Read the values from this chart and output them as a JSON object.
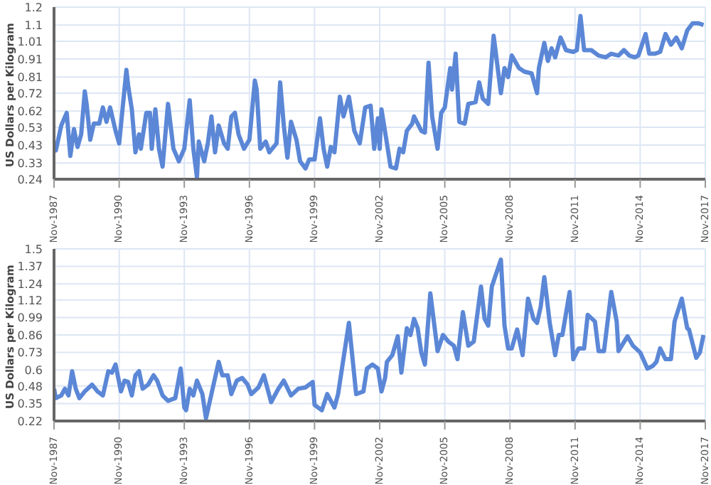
{
  "chart_data": [
    {
      "type": "line",
      "ylabel": "US Dollars per Kilogram",
      "grid": true,
      "x": [
        "1987-11",
        "1987-12",
        "1988-03",
        "1988-06",
        "1988-07",
        "1988-08",
        "1988-10",
        "1988-12",
        "1989-02",
        "1989-04",
        "1989-05",
        "1989-07",
        "1989-09",
        "1989-12",
        "1990-02",
        "1990-04",
        "1990-06",
        "1990-09",
        "1990-11",
        "1991-03",
        "1991-04",
        "1991-06",
        "1991-08",
        "1991-10",
        "1991-11",
        "1992-02",
        "1992-04",
        "1992-05",
        "1992-07",
        "1992-09",
        "1992-11",
        "1993-02",
        "1993-05",
        "1993-08",
        "1993-11",
        "1994-02",
        "1994-04",
        "1994-06",
        "1994-07",
        "1994-10",
        "1994-12",
        "1995-02",
        "1995-04",
        "1995-06",
        "1995-09",
        "1995-11",
        "1996-01",
        "1996-03",
        "1996-05",
        "1996-08",
        "1996-11",
        "1997-02",
        "1997-03",
        "1997-05",
        "1997-08",
        "1997-10",
        "1998-02",
        "1998-04",
        "1998-06",
        "1998-08",
        "1998-10",
        "1999-01",
        "1999-03",
        "1999-06",
        "1999-08",
        "1999-11",
        "2000-02",
        "2000-04",
        "2000-06",
        "2000-08",
        "2000-10",
        "2001-01",
        "2001-03",
        "2001-06",
        "2001-09",
        "2001-12",
        "2002-03",
        "2002-06",
        "2002-08",
        "2002-10",
        "2002-11",
        "2002-12",
        "2003-03",
        "2003-05",
        "2003-08",
        "2003-10",
        "2003-12",
        "2004-02",
        "2004-05",
        "2004-06",
        "2004-10",
        "2004-12",
        "2005-02",
        "2005-04",
        "2005-07",
        "2005-09",
        "2005-11",
        "2006-02",
        "2006-03",
        "2006-05",
        "2006-07",
        "2006-10",
        "2006-12",
        "2007-04",
        "2007-06",
        "2007-08",
        "2007-11",
        "2008-02",
        "2008-06",
        "2008-08",
        "2008-10",
        "2008-12",
        "2009-04",
        "2009-07",
        "2009-11",
        "2010-02",
        "2010-03",
        "2010-06",
        "2010-08",
        "2010-10",
        "2010-12",
        "2011-03",
        "2011-06",
        "2011-10",
        "2011-12",
        "2012-02",
        "2012-04",
        "2012-08",
        "2012-12",
        "2013-04",
        "2013-07",
        "2013-11",
        "2014-02",
        "2014-05",
        "2014-08",
        "2014-10",
        "2015-02",
        "2015-04",
        "2015-07",
        "2015-10",
        "2016-01",
        "2016-04",
        "2016-07",
        "2016-10",
        "2017-01",
        "2017-04",
        "2017-07",
        "2017-10"
      ],
      "series": [
        {
          "color": "#5b87d6",
          "values": [
            0.42,
            0.4,
            0.54,
            0.61,
            0.49,
            0.37,
            0.52,
            0.42,
            0.49,
            0.73,
            0.66,
            0.46,
            0.55,
            0.55,
            0.64,
            0.56,
            0.64,
            0.51,
            0.44,
            0.85,
            0.76,
            0.63,
            0.39,
            0.49,
            0.41,
            0.61,
            0.61,
            0.41,
            0.63,
            0.41,
            0.31,
            0.66,
            0.41,
            0.34,
            0.41,
            0.68,
            0.41,
            0.25,
            0.45,
            0.34,
            0.44,
            0.59,
            0.39,
            0.54,
            0.44,
            0.41,
            0.59,
            0.61,
            0.49,
            0.41,
            0.46,
            0.79,
            0.74,
            0.41,
            0.45,
            0.39,
            0.44,
            0.78,
            0.54,
            0.36,
            0.56,
            0.46,
            0.34,
            0.3,
            0.35,
            0.35,
            0.58,
            0.41,
            0.31,
            0.42,
            0.39,
            0.7,
            0.59,
            0.7,
            0.51,
            0.44,
            0.64,
            0.65,
            0.41,
            0.58,
            0.41,
            0.63,
            0.44,
            0.31,
            0.3,
            0.41,
            0.39,
            0.51,
            0.55,
            0.59,
            0.51,
            0.5,
            0.89,
            0.59,
            0.41,
            0.61,
            0.64,
            0.86,
            0.74,
            0.94,
            0.56,
            0.55,
            0.66,
            0.67,
            0.78,
            0.69,
            0.66,
            1.04,
            0.72,
            0.86,
            0.81,
            0.93,
            0.86,
            0.84,
            0.83,
            0.72,
            0.86,
            1.0,
            0.9,
            0.97,
            0.92,
            1.03,
            0.96,
            0.95,
            0.96,
            1.15,
            0.96,
            0.96,
            0.93,
            0.92,
            0.94,
            0.93,
            0.96,
            0.93,
            0.92,
            0.93,
            1.05,
            0.94,
            0.94,
            0.95,
            1.05,
            0.99,
            1.03,
            0.97,
            1.07,
            1.11,
            1.11,
            1.1
          ]
        }
      ],
      "xlim": [
        "1987-11",
        "2017-11"
      ],
      "xticks": [
        {
          "value": "1987-11",
          "label": "Nov-1987"
        },
        {
          "value": "1990-11",
          "label": "Nov-1990"
        },
        {
          "value": "1993-11",
          "label": "Nov-1993"
        },
        {
          "value": "1996-11",
          "label": "Nov-1996"
        },
        {
          "value": "1999-11",
          "label": "Nov-1999"
        },
        {
          "value": "2002-11",
          "label": "Nov-2002"
        },
        {
          "value": "2005-11",
          "label": "Nov-2005"
        },
        {
          "value": "2008-11",
          "label": "Nov-2008"
        },
        {
          "value": "2011-11",
          "label": "Nov-2011"
        },
        {
          "value": "2014-11",
          "label": "Nov-2014"
        },
        {
          "value": "2017-11",
          "label": "Nov-2017"
        }
      ],
      "ylim": [
        0.24,
        1.2
      ],
      "yticks": [
        0.24,
        0.33,
        0.43,
        0.53,
        0.62,
        0.72,
        0.81,
        0.91,
        1.01,
        1.1,
        1.2
      ]
    },
    {
      "type": "line",
      "ylabel": "US Dollars per Kilogram",
      "grid": true,
      "x": [
        "1987-11",
        "1987-12",
        "1988-03",
        "1988-05",
        "1988-07",
        "1988-09",
        "1988-11",
        "1989-01",
        "1989-04",
        "1989-08",
        "1989-11",
        "1990-02",
        "1990-05",
        "1990-07",
        "1990-09",
        "1990-12",
        "1991-02",
        "1991-04",
        "1991-06",
        "1991-08",
        "1991-10",
        "1991-12",
        "1992-03",
        "1992-06",
        "1992-08",
        "1992-11",
        "1993-02",
        "1993-06",
        "1993-09",
        "1993-11",
        "1993-12",
        "1994-02",
        "1994-04",
        "1994-06",
        "1994-09",
        "1994-11",
        "1995-02",
        "1995-06",
        "1995-08",
        "1995-11",
        "1996-01",
        "1996-04",
        "1996-07",
        "1996-10",
        "1996-12",
        "1997-04",
        "1997-07",
        "1997-11",
        "1998-03",
        "1998-06",
        "1998-10",
        "1999-02",
        "1999-06",
        "1999-10",
        "1999-11",
        "2000-03",
        "2000-06",
        "2000-10",
        "2000-12",
        "2001-06",
        "2001-10",
        "2002-02",
        "2002-04",
        "2002-07",
        "2002-10",
        "2002-12",
        "2003-02",
        "2003-03",
        "2003-06",
        "2003-09",
        "2003-11",
        "2004-02",
        "2004-04",
        "2004-06",
        "2004-08",
        "2004-10",
        "2004-12",
        "2005-03",
        "2005-07",
        "2005-10",
        "2006-01",
        "2006-04",
        "2006-06",
        "2006-09",
        "2006-12",
        "2007-03",
        "2007-07",
        "2007-09",
        "2007-11",
        "2008-01",
        "2008-06",
        "2008-08",
        "2008-10",
        "2008-12",
        "2009-03",
        "2009-06",
        "2009-09",
        "2009-12",
        "2010-02",
        "2010-04",
        "2010-06",
        "2010-09",
        "2010-12",
        "2011-02",
        "2011-04",
        "2011-08",
        "2011-10",
        "2012-01",
        "2012-04",
        "2012-06",
        "2012-10",
        "2012-12",
        "2013-03",
        "2013-07",
        "2013-10",
        "2013-11",
        "2014-04",
        "2014-07",
        "2014-11",
        "2015-03",
        "2015-06",
        "2015-08",
        "2015-10",
        "2016-01",
        "2016-04",
        "2016-06",
        "2016-10",
        "2017-01",
        "2017-02",
        "2017-06",
        "2017-08",
        "2017-10"
      ],
      "series": [
        {
          "color": "#5b87d6",
          "values": [
            0.46,
            0.39,
            0.41,
            0.46,
            0.41,
            0.59,
            0.46,
            0.39,
            0.44,
            0.49,
            0.44,
            0.41,
            0.59,
            0.58,
            0.64,
            0.44,
            0.52,
            0.51,
            0.41,
            0.56,
            0.59,
            0.46,
            0.49,
            0.56,
            0.52,
            0.41,
            0.37,
            0.39,
            0.61,
            0.32,
            0.3,
            0.46,
            0.41,
            0.52,
            0.42,
            0.24,
            0.42,
            0.66,
            0.56,
            0.56,
            0.42,
            0.52,
            0.54,
            0.49,
            0.42,
            0.47,
            0.56,
            0.36,
            0.46,
            0.52,
            0.41,
            0.46,
            0.47,
            0.51,
            0.34,
            0.3,
            0.42,
            0.32,
            0.42,
            0.95,
            0.42,
            0.44,
            0.61,
            0.64,
            0.61,
            0.44,
            0.54,
            0.66,
            0.71,
            0.85,
            0.58,
            0.91,
            0.86,
            0.98,
            0.91,
            0.73,
            0.64,
            1.17,
            0.74,
            0.86,
            0.81,
            0.78,
            0.68,
            1.03,
            0.78,
            0.81,
            1.22,
            0.98,
            0.93,
            1.22,
            1.42,
            0.93,
            0.76,
            0.76,
            0.9,
            0.71,
            1.13,
            0.98,
            0.95,
            1.07,
            1.29,
            0.95,
            0.71,
            0.86,
            0.86,
            1.18,
            0.68,
            0.76,
            0.76,
            1.01,
            0.96,
            0.74,
            0.74,
            1.18,
            0.96,
            0.74,
            0.85,
            0.78,
            0.73,
            0.61,
            0.63,
            0.66,
            0.76,
            0.68,
            0.68,
            0.96,
            1.13,
            0.91,
            0.9,
            0.69,
            0.73,
            0.86
          ]
        }
      ],
      "xlim": [
        "1987-11",
        "2017-11"
      ],
      "xticks": [
        {
          "value": "1987-11",
          "label": "Nov-1987"
        },
        {
          "value": "1990-11",
          "label": "Nov-1990"
        },
        {
          "value": "1993-11",
          "label": "Nov-1993"
        },
        {
          "value": "1996-11",
          "label": "Nov-1996"
        },
        {
          "value": "1999-11",
          "label": "Nov-1999"
        },
        {
          "value": "2002-11",
          "label": "Nov-2002"
        },
        {
          "value": "2005-11",
          "label": "Nov-2005"
        },
        {
          "value": "2008-11",
          "label": "Nov-2008"
        },
        {
          "value": "2011-11",
          "label": "Nov-2011"
        },
        {
          "value": "2014-11",
          "label": "Nov-2014"
        },
        {
          "value": "2017-11",
          "label": "Nov-2017"
        }
      ],
      "ylim": [
        0.22,
        1.5
      ],
      "yticks": [
        0.22,
        0.35,
        0.48,
        0.6,
        0.73,
        0.86,
        0.99,
        1.12,
        1.24,
        1.37,
        1.5
      ]
    }
  ]
}
